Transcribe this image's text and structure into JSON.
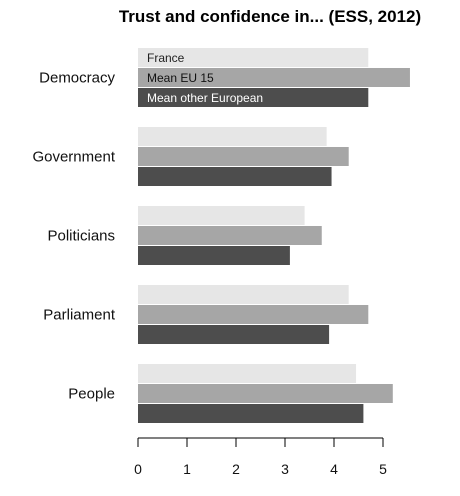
{
  "chart_data": {
    "type": "bar",
    "orientation": "horizontal",
    "title": "Trust and confidence in... (ESS, 2012)",
    "categories": [
      "Democracy",
      "Government",
      "Politicians",
      "Parliament",
      "People"
    ],
    "series": [
      {
        "name": "France",
        "color": "#e6e6e6",
        "label_color": "#222222",
        "values": [
          4.7,
          3.85,
          3.4,
          4.3,
          4.45
        ]
      },
      {
        "name": "Mean EU 15",
        "color": "#a6a6a6",
        "label_color": "#111111",
        "values": [
          5.55,
          4.3,
          3.75,
          4.7,
          5.2
        ]
      },
      {
        "name": "Mean other European",
        "color": "#4d4d4d",
        "label_color": "#ffffff",
        "values": [
          4.7,
          3.95,
          3.1,
          3.9,
          4.6
        ]
      }
    ],
    "xticks": [
      0,
      1,
      2,
      3,
      4,
      5
    ],
    "xlim": [
      0,
      6
    ],
    "legend": "inside-top-left",
    "grid": false
  }
}
